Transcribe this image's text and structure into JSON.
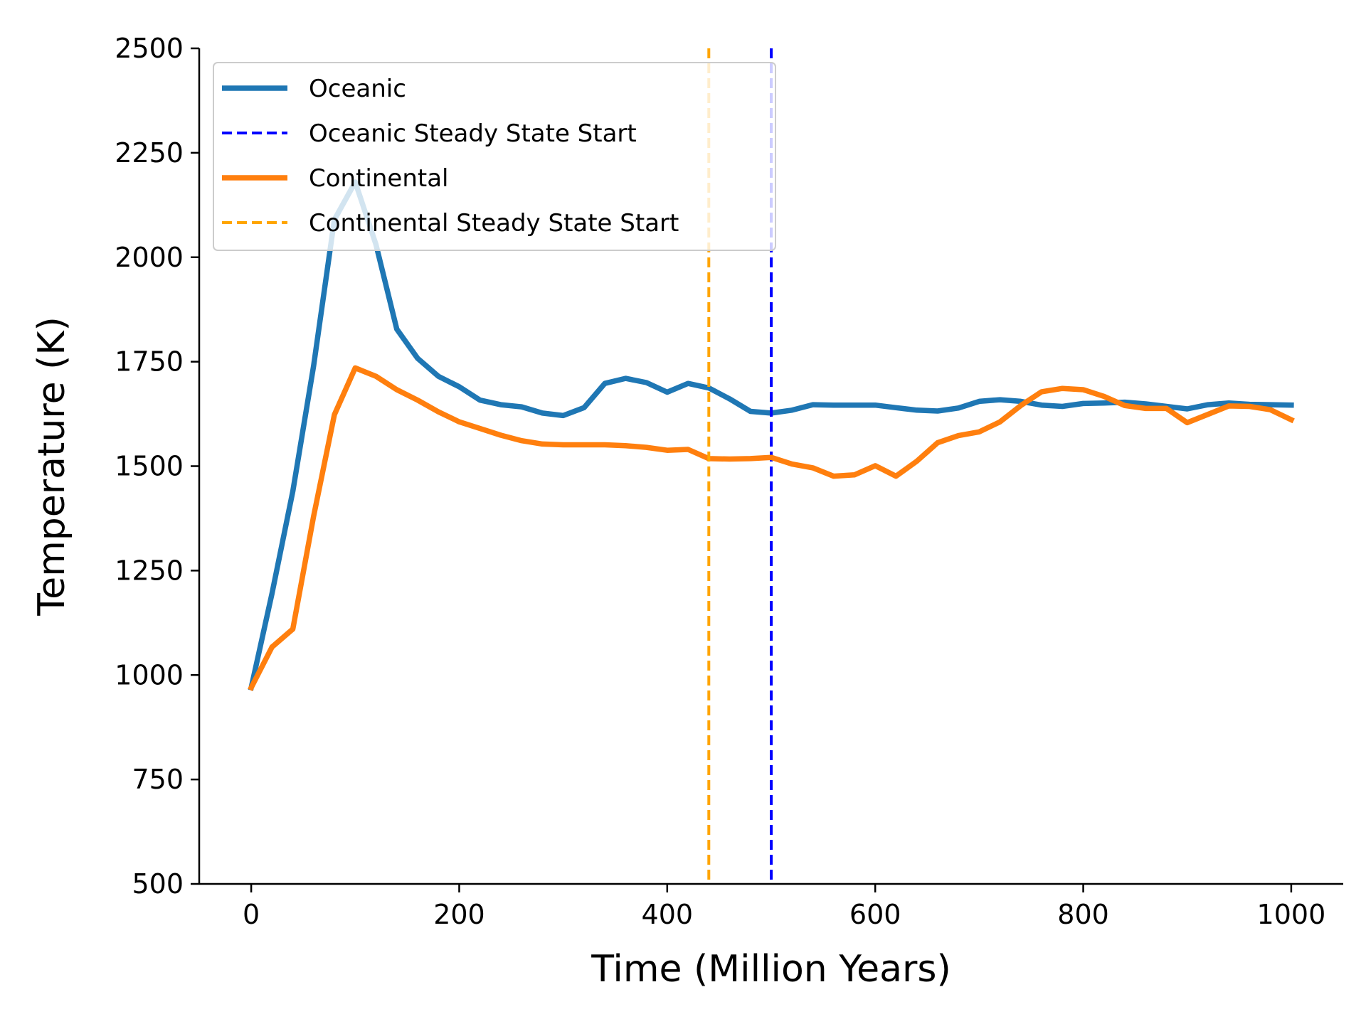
{
  "chart_data": {
    "type": "line",
    "title": "",
    "xlabel": "Time (Million Years)",
    "ylabel": "Temperature (K)",
    "xlim": [
      -50,
      1050
    ],
    "ylim": [
      500,
      2500
    ],
    "xticks": [
      0,
      200,
      400,
      600,
      800,
      1000
    ],
    "yticks": [
      500,
      750,
      1000,
      1250,
      1500,
      1750,
      2000,
      2250,
      2500
    ],
    "grid": false,
    "legend_position": "top-left",
    "series": [
      {
        "name": "Oceanic",
        "color": "#1f77b4",
        "style": "solid",
        "x": [
          0,
          20,
          40,
          60,
          80,
          100,
          120,
          140,
          160,
          180,
          200,
          220,
          240,
          260,
          280,
          300,
          320,
          340,
          360,
          380,
          400,
          420,
          440,
          460,
          480,
          500,
          520,
          540,
          560,
          580,
          600,
          620,
          640,
          660,
          680,
          700,
          720,
          740,
          760,
          780,
          800,
          820,
          840,
          860,
          880,
          900,
          920,
          940,
          960,
          980,
          1000
        ],
        "y": [
          970,
          1195,
          1440,
          1740,
          2090,
          2180,
          2030,
          1828,
          1758,
          1715,
          1690,
          1658,
          1647,
          1642,
          1627,
          1621,
          1640,
          1698,
          1710,
          1700,
          1677,
          1698,
          1687,
          1661,
          1631,
          1627,
          1634,
          1647,
          1646,
          1646,
          1646,
          1640,
          1634,
          1632,
          1639,
          1655,
          1659,
          1655,
          1646,
          1643,
          1650,
          1651,
          1653,
          1649,
          1643,
          1637,
          1647,
          1651,
          1648,
          1647,
          1646
        ]
      },
      {
        "name": "Continental",
        "color": "#ff7f0e",
        "style": "solid",
        "x": [
          0,
          20,
          40,
          60,
          80,
          100,
          120,
          140,
          160,
          180,
          200,
          220,
          240,
          260,
          280,
          300,
          320,
          340,
          360,
          380,
          400,
          420,
          440,
          460,
          480,
          500,
          520,
          540,
          560,
          580,
          600,
          620,
          640,
          660,
          680,
          700,
          720,
          740,
          760,
          780,
          800,
          820,
          840,
          860,
          880,
          900,
          920,
          940,
          960,
          980,
          1000
        ],
        "y": [
          970,
          1067,
          1110,
          1380,
          1623,
          1735,
          1715,
          1683,
          1658,
          1630,
          1606,
          1590,
          1574,
          1561,
          1553,
          1551,
          1551,
          1551,
          1549,
          1545,
          1538,
          1540,
          1518,
          1517,
          1518,
          1521,
          1505,
          1496,
          1476,
          1479,
          1501,
          1476,
          1512,
          1556,
          1573,
          1582,
          1606,
          1645,
          1678,
          1686,
          1683,
          1667,
          1645,
          1638,
          1638,
          1604,
          1624,
          1644,
          1643,
          1635,
          1611
        ]
      }
    ],
    "vlines": [
      {
        "name": "Oceanic Steady State Start",
        "x": 500,
        "color": "#0000ff",
        "style": "dashed"
      },
      {
        "name": "Continental Steady State Start",
        "x": 440,
        "color": "#ffa500",
        "style": "dashed"
      }
    ],
    "legend": [
      "Oceanic",
      "Oceanic Steady State Start",
      "Continental",
      "Continental Steady State Start"
    ]
  }
}
